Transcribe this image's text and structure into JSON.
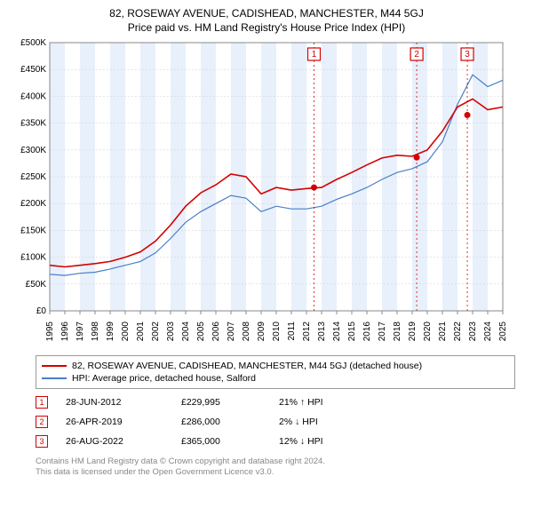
{
  "title_line1": "82, ROSEWAY AVENUE, CADISHEAD, MANCHESTER, M44 5GJ",
  "title_line2": "Price paid vs. HM Land Registry's House Price Index (HPI)",
  "chart": {
    "type": "line",
    "background_color": "#ffffff",
    "grid_color": "#cccccc",
    "x_years": [
      1995,
      1996,
      1997,
      1998,
      1999,
      2000,
      2001,
      2002,
      2003,
      2004,
      2005,
      2006,
      2007,
      2008,
      2009,
      2010,
      2011,
      2012,
      2013,
      2014,
      2015,
      2016,
      2017,
      2018,
      2019,
      2020,
      2021,
      2022,
      2023,
      2024,
      2025
    ],
    "ylim": [
      0,
      500000
    ],
    "ytick_step": 50000,
    "ytick_labels": [
      "£0",
      "£50K",
      "£100K",
      "£150K",
      "£200K",
      "£250K",
      "£300K",
      "£350K",
      "£400K",
      "£450K",
      "£500K"
    ],
    "series_property": {
      "label": "82, ROSEWAY AVENUE, CADISHEAD, MANCHESTER, M44 5GJ (detached house)",
      "color": "#d40000",
      "values_by_year": {
        "1995": 85000,
        "1996": 82000,
        "1997": 85000,
        "1998": 88000,
        "1999": 92000,
        "2000": 100000,
        "2001": 110000,
        "2002": 130000,
        "2003": 160000,
        "2004": 195000,
        "2005": 220000,
        "2006": 235000,
        "2007": 255000,
        "2008": 250000,
        "2009": 218000,
        "2010": 230000,
        "2011": 225000,
        "2012": 228000,
        "2013": 230000,
        "2014": 245000,
        "2015": 258000,
        "2016": 272000,
        "2017": 285000,
        "2018": 290000,
        "2019": 288000,
        "2020": 300000,
        "2021": 335000,
        "2022": 380000,
        "2023": 395000,
        "2024": 375000,
        "2025": 380000
      }
    },
    "series_hpi": {
      "label": "HPI: Average price, detached house, Salford",
      "color": "#4a7ec8",
      "values_by_year": {
        "1995": 68000,
        "1996": 66000,
        "1997": 70000,
        "1998": 72000,
        "1999": 78000,
        "2000": 85000,
        "2001": 92000,
        "2002": 108000,
        "2003": 135000,
        "2004": 165000,
        "2005": 185000,
        "2006": 200000,
        "2007": 215000,
        "2008": 210000,
        "2009": 185000,
        "2010": 195000,
        "2011": 190000,
        "2012": 190000,
        "2013": 195000,
        "2014": 208000,
        "2015": 218000,
        "2016": 230000,
        "2017": 245000,
        "2018": 258000,
        "2019": 265000,
        "2020": 278000,
        "2021": 315000,
        "2022": 385000,
        "2023": 440000,
        "2024": 418000,
        "2025": 430000
      }
    },
    "band_color": "#e8f0fb",
    "transactions": [
      {
        "n": "1",
        "year": 2012.5,
        "price": 229995
      },
      {
        "n": "2",
        "year": 2019.3,
        "price": 286000
      },
      {
        "n": "3",
        "year": 2022.65,
        "price": 365000
      }
    ],
    "marker_box_fill": "#ffffff",
    "marker_box_stroke": "#d40000"
  },
  "legend": {
    "row1_label": "82, ROSEWAY AVENUE, CADISHEAD, MANCHESTER, M44 5GJ (detached house)",
    "row1_color": "#d40000",
    "row2_label": "HPI: Average price, detached house, Salford",
    "row2_color": "#4a7ec8"
  },
  "tx_table": [
    {
      "n": "1",
      "date": "28-JUN-2012",
      "price": "£229,995",
      "delta": "21% ↑ HPI"
    },
    {
      "n": "2",
      "date": "26-APR-2019",
      "price": "£286,000",
      "delta": "2% ↓ HPI"
    },
    {
      "n": "3",
      "date": "26-AUG-2022",
      "price": "£365,000",
      "delta": "12% ↓ HPI"
    }
  ],
  "footer_line1": "Contains HM Land Registry data © Crown copyright and database right 2024.",
  "footer_line2": "This data is licensed under the Open Government Licence v3.0."
}
